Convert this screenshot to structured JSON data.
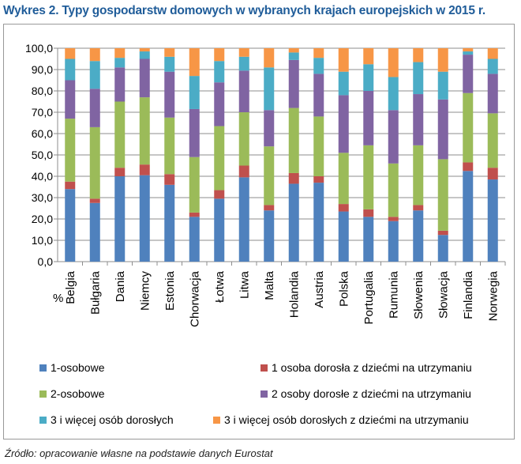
{
  "chart_data": {
    "type": "bar",
    "stacked": true,
    "title": "Wykres 2. Typy gospodarstw domowych w wybranych krajach europejskich w 2015 r.",
    "ylabel": "%",
    "ylim": [
      0,
      100
    ],
    "yticks": [
      "0,0",
      "10,0",
      "20,0",
      "30,0",
      "40,0",
      "50,0",
      "60,0",
      "70,0",
      "80,0",
      "90,0",
      "100,0"
    ],
    "grid": true,
    "legend_position": "bottom",
    "categories": [
      "Belgia",
      "Bułgaria",
      "Dania",
      "Niemcy",
      "Estonia",
      "Chorwacja",
      "Łotwa",
      "Litwa",
      "Malta",
      "Holandia",
      "Austria",
      "Polska",
      "Portugalia",
      "Rumunia",
      "Słowenia",
      "Słowacja",
      "Finlandia",
      "Norwegia"
    ],
    "series": [
      {
        "name": "1-osobowe",
        "color": "#4F81BD",
        "values": [
          34,
          27.5,
          40,
          40.5,
          36,
          21,
          29.5,
          39.5,
          24,
          36.5,
          37,
          23.5,
          21,
          19,
          24,
          12.5,
          42.5,
          38.5
        ]
      },
      {
        "name": "1 osoba dorosła z dziećmi na utrzymaniu",
        "color": "#C0504D",
        "values": [
          3.5,
          2,
          4,
          5,
          5,
          2,
          4,
          5.5,
          2.5,
          5,
          3,
          3.5,
          3.5,
          2,
          2.5,
          2,
          4,
          5.5
        ]
      },
      {
        "name": "2-osobowe",
        "color": "#9BBB59",
        "values": [
          29.5,
          33.5,
          31,
          31.5,
          26.5,
          26,
          30,
          25,
          27.5,
          30.5,
          28,
          24,
          30,
          25,
          28,
          33.5,
          32.5,
          25.5
        ]
      },
      {
        "name": "2 osoby dorosłe z dziećmi na utrzymaniu",
        "color": "#8064A2",
        "values": [
          18,
          18,
          16,
          18,
          21.5,
          22.5,
          20.5,
          19.5,
          17,
          22.5,
          20,
          27,
          25.5,
          25,
          24,
          28,
          18,
          18.5
        ]
      },
      {
        "name": "3 i więcej osób dorosłych",
        "color": "#4BACC6",
        "values": [
          10,
          13,
          4.5,
          3.5,
          7,
          15.5,
          10,
          6.5,
          20,
          3.5,
          7.5,
          11,
          12.5,
          15.5,
          15,
          13,
          1.5,
          7
        ]
      },
      {
        "name": "3 i więcej osób dorosłych z dziećmi na utrzymaniu",
        "color": "#F79646",
        "values": [
          5,
          6,
          4.5,
          1.5,
          4,
          13,
          6,
          4,
          9,
          2,
          4.5,
          11,
          7.5,
          13.5,
          6.5,
          11,
          1.5,
          5
        ]
      }
    ]
  },
  "source": "Źródło: opracowanie własne na podstawie danych Eurostat"
}
